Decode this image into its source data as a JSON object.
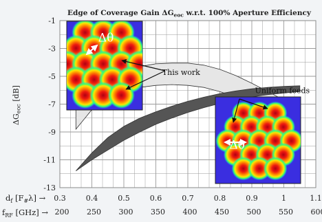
{
  "chart_data": {
    "type": "area",
    "title": "Edge of Coverage Gain ΔG",
    "title_sub": "eoc",
    "title_tail": " w.r.t. 100% Aperture Efficiency",
    "ylabel_main": "ΔG",
    "ylabel_sub": "eoc",
    "ylabel_unit": " [dB]",
    "xlim": [
      0.3,
      1.1
    ],
    "ylim": [
      -13,
      -1
    ],
    "xticks": [
      0.3,
      0.4,
      0.5,
      0.6,
      0.7,
      0.8,
      0.9,
      1,
      1.1
    ],
    "xtick_labels": [
      "0.3",
      "0.4",
      "0.5",
      "0.6",
      "0.7",
      "0.8",
      "0.9",
      "1",
      "1.1"
    ],
    "yticks": [
      -1,
      -3,
      -5,
      -7,
      -9,
      -11,
      -13
    ],
    "ytick_labels": [
      "-1",
      "-3",
      "-5",
      "-7",
      "-9",
      "-11",
      "-13"
    ],
    "x_axis_label": "d",
    "x_axis_label_sub": "f",
    "x_axis_label_unit": " [F",
    "x_axis_label_unit_sub": "#",
    "x_axis_label_unit_tail": "λ] →",
    "x2_axis_label": "f",
    "x2_axis_label_sub": "RF",
    "x2_axis_label_unit": " [GHz] →",
    "x2_ticks": [
      200,
      250,
      300,
      350,
      400,
      450,
      500,
      550,
      600
    ],
    "x2_tick_labels": [
      "200",
      "250",
      "300",
      "350",
      "400",
      "450",
      "500",
      "550",
      "600"
    ],
    "grid": true,
    "series": [
      {
        "name": "This work",
        "color": "#e6e6e6",
        "upper": {
          "x": [
            0.35,
            0.4,
            0.45,
            0.5,
            0.55,
            0.6,
            0.65,
            0.7,
            0.75,
            0.8,
            0.85,
            0.9,
            0.95,
            1.0,
            1.05
          ],
          "y": [
            -6.7,
            -5.7,
            -5.0,
            -4.6,
            -4.3,
            -4.1,
            -4.05,
            -4.05,
            -4.2,
            -4.5,
            -4.95,
            -5.5,
            -6.1,
            -6.7,
            -7.3
          ]
        },
        "lower": {
          "x": [
            0.35,
            0.4,
            0.45,
            0.5,
            0.55,
            0.6,
            0.65,
            0.7,
            0.75,
            0.8,
            0.85,
            0.9,
            0.95,
            1.0,
            1.05
          ],
          "y": [
            -8.8,
            -7.4,
            -6.6,
            -6.1,
            -5.8,
            -5.65,
            -5.6,
            -5.65,
            -5.8,
            -6.1,
            -6.5,
            -6.95,
            -7.45,
            -7.95,
            -8.4
          ]
        }
      },
      {
        "name": "Uniform feeds",
        "color": "#555555",
        "upper": {
          "x": [
            0.35,
            0.4,
            0.45,
            0.5,
            0.55,
            0.6,
            0.65,
            0.7,
            0.75,
            0.8,
            0.85,
            0.9,
            0.95,
            1.0,
            1.05
          ],
          "y": [
            -11.8,
            -10.5,
            -9.4,
            -8.6,
            -8.0,
            -7.55,
            -7.15,
            -6.8,
            -6.5,
            -6.25,
            -6.05,
            -5.9,
            -5.8,
            -5.72,
            -5.68
          ]
        },
        "lower": {
          "x": [
            1.05,
            1.0,
            0.95,
            0.9,
            0.85,
            0.8,
            0.75,
            0.7,
            0.65,
            0.6,
            0.55,
            0.5,
            0.45,
            0.4,
            0.35
          ],
          "y": [
            -6.1,
            -6.2,
            -6.32,
            -6.48,
            -6.7,
            -6.95,
            -7.25,
            -7.6,
            -8.0,
            -8.45,
            -9.0,
            -9.6,
            -10.3,
            -11.0,
            -11.8
          ]
        }
      }
    ],
    "annotations": [
      {
        "text": "This work",
        "x": 0.62,
        "y": -4.9
      },
      {
        "text": "Uniform feeds",
        "x": 0.91,
        "y": -6.2
      },
      {
        "text": "Δθ",
        "x": 0.42,
        "y": -2.5
      },
      {
        "text": "Δθ",
        "x": 0.83,
        "y": -10.2
      }
    ]
  },
  "insets": [
    {
      "name": "top-left-beam-map",
      "kind": "heatmap",
      "beams": 19,
      "palette": [
        "#3a2ee0",
        "#00c8ff",
        "#40ff60",
        "#ffe000",
        "#ff3000",
        "#b80010"
      ]
    },
    {
      "name": "bottom-right-beam-map",
      "kind": "heatmap",
      "beams": 19,
      "palette": [
        "#3a2ee0",
        "#00c8ff",
        "#40ff60",
        "#ffe000",
        "#ff3000",
        "#b80010"
      ]
    }
  ]
}
